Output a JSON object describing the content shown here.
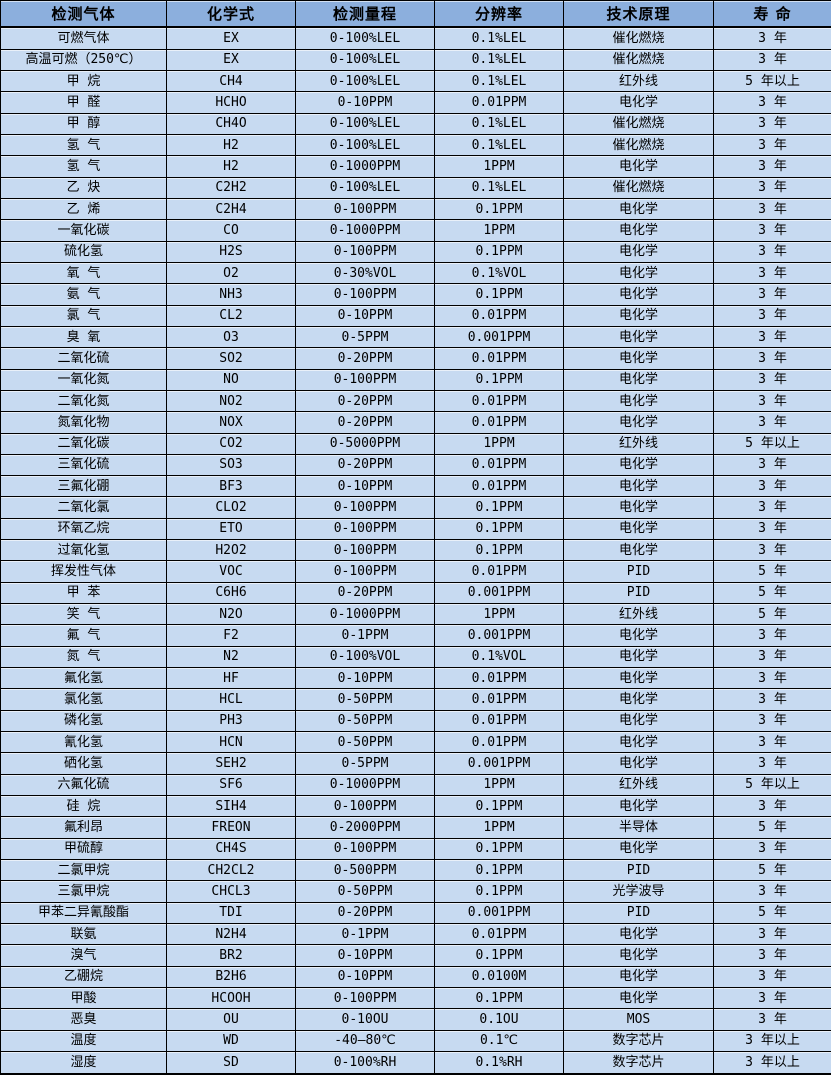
{
  "colors": {
    "header_bg": "#8cafdd",
    "row_bg": "#c7daf1",
    "border": "#000000"
  },
  "table": {
    "type": "table",
    "columns": [
      "检测气体",
      "化学式",
      "检测量程",
      "分辨率",
      "技术原理",
      "寿 命"
    ],
    "column_keys": [
      "gas-name",
      "chemical-formula",
      "detection-range",
      "resolution",
      "technology-principle",
      "lifespan"
    ],
    "rows": [
      [
        "可燃气体",
        "EX",
        "0-100%LEL",
        "0.1%LEL",
        "催化燃烧",
        "3 年"
      ],
      [
        "高温可燃（250℃）",
        "EX",
        "0-100%LEL",
        "0.1%LEL",
        "催化燃烧",
        "3 年"
      ],
      [
        "甲 烷",
        "CH4",
        "0-100%LEL",
        "0.1%LEL",
        "红外线",
        "5 年以上"
      ],
      [
        "甲 醛",
        "HCHO",
        "0-10PPM",
        "0.01PPM",
        "电化学",
        "3 年"
      ],
      [
        "甲 醇",
        "CH4O",
        "0-100%LEL",
        "0.1%LEL",
        "催化燃烧",
        "3 年"
      ],
      [
        "氢 气",
        "H2",
        "0-100%LEL",
        "0.1%LEL",
        "催化燃烧",
        "3 年"
      ],
      [
        "氢 气",
        "H2",
        "0-1000PPM",
        "1PPM",
        "电化学",
        "3 年"
      ],
      [
        "乙 炔",
        "C2H2",
        "0-100%LEL",
        "0.1%LEL",
        "催化燃烧",
        "3 年"
      ],
      [
        "乙 烯",
        "C2H4",
        "0-100PPM",
        "0.1PPM",
        "电化学",
        "3 年"
      ],
      [
        "一氧化碳",
        "CO",
        "0-1000PPM",
        "1PPM",
        "电化学",
        "3 年"
      ],
      [
        "硫化氢",
        "H2S",
        "0-100PPM",
        "0.1PPM",
        "电化学",
        "3 年"
      ],
      [
        "氧 气",
        "O2",
        "0-30%VOL",
        "0.1%VOL",
        "电化学",
        "3 年"
      ],
      [
        "氨 气",
        "NH3",
        "0-100PPM",
        "0.1PPM",
        "电化学",
        "3 年"
      ],
      [
        "氯 气",
        "CL2",
        "0-10PPM",
        "0.01PPM",
        "电化学",
        "3 年"
      ],
      [
        "臭 氧",
        "O3",
        "0-5PPM",
        "0.001PPM",
        "电化学",
        "3 年"
      ],
      [
        "二氧化硫",
        "SO2",
        "0-20PPM",
        "0.01PPM",
        "电化学",
        "3 年"
      ],
      [
        "一氧化氮",
        "NO",
        "0-100PPM",
        "0.1PPM",
        "电化学",
        "3 年"
      ],
      [
        "二氧化氮",
        "NO2",
        "0-20PPM",
        "0.01PPM",
        "电化学",
        "3 年"
      ],
      [
        "氮氧化物",
        "NOX",
        "0-20PPM",
        "0.01PPM",
        "电化学",
        "3 年"
      ],
      [
        "二氧化碳",
        "CO2",
        "0-5000PPM",
        "1PPM",
        "红外线",
        "5 年以上"
      ],
      [
        "三氧化硫",
        "SO3",
        "0-20PPM",
        "0.01PPM",
        "电化学",
        "3 年"
      ],
      [
        "三氟化硼",
        "BF3",
        "0-10PPM",
        "0.01PPM",
        "电化学",
        "3 年"
      ],
      [
        "二氧化氯",
        "CLO2",
        "0-100PPM",
        "0.1PPM",
        "电化学",
        "3 年"
      ],
      [
        "环氧乙烷",
        "ETO",
        "0-100PPM",
        "0.1PPM",
        "电化学",
        "3 年"
      ],
      [
        "过氧化氢",
        "H2O2",
        "0-100PPM",
        "0.1PPM",
        "电化学",
        "3 年"
      ],
      [
        "挥发性气体",
        "VOC",
        "0-100PPM",
        "0.01PPM",
        "PID",
        "5 年"
      ],
      [
        "甲 苯",
        "C6H6",
        "0-20PPM",
        "0.001PPM",
        "PID",
        "5 年"
      ],
      [
        "笑 气",
        "N2O",
        "0-1000PPM",
        "1PPM",
        "红外线",
        "5 年"
      ],
      [
        "氟 气",
        "F2",
        "0-1PPM",
        "0.001PPM",
        "电化学",
        "3 年"
      ],
      [
        "氮 气",
        "N2",
        "0-100%VOL",
        "0.1%VOL",
        "电化学",
        "3 年"
      ],
      [
        "氟化氢",
        "HF",
        "0-10PPM",
        "0.01PPM",
        "电化学",
        "3 年"
      ],
      [
        "氯化氢",
        "HCL",
        "0-50PPM",
        "0.01PPM",
        "电化学",
        "3 年"
      ],
      [
        "磷化氢",
        "PH3",
        "0-50PPM",
        "0.01PPM",
        "电化学",
        "3 年"
      ],
      [
        "氰化氢",
        "HCN",
        "0-50PPM",
        "0.01PPM",
        "电化学",
        "3 年"
      ],
      [
        "硒化氢",
        "SEH2",
        "0-5PPM",
        "0.001PPM",
        "电化学",
        "3 年"
      ],
      [
        "六氟化硫",
        "SF6",
        "0-1000PPM",
        "1PPM",
        "红外线",
        "5 年以上"
      ],
      [
        "硅 烷",
        "SIH4",
        "0-100PPM",
        "0.1PPM",
        "电化学",
        "3 年"
      ],
      [
        "氟利昂",
        "FREON",
        "0-2000PPM",
        "1PPM",
        "半导体",
        "5 年"
      ],
      [
        "甲硫醇",
        "CH4S",
        "0-100PPM",
        "0.1PPM",
        "电化学",
        "3 年"
      ],
      [
        "二氯甲烷",
        "CH2CL2",
        "0-500PPM",
        "0.1PPM",
        "PID",
        "5 年"
      ],
      [
        "三氯甲烷",
        "CHCL3",
        "0-50PPM",
        "0.1PPM",
        "光学波导",
        "3 年"
      ],
      [
        "甲苯二异氰酸酯",
        "TDI",
        "0-20PPM",
        "0.001PPM",
        "PID",
        "5 年"
      ],
      [
        "联氨",
        "N2H4",
        "0-1PPM",
        "0.01PPM",
        "电化学",
        "3 年"
      ],
      [
        "溴气",
        "BR2",
        "0-10PPM",
        "0.1PPM",
        "电化学",
        "3 年"
      ],
      [
        "乙硼烷",
        "B2H6",
        "0-10PPM",
        "0.0100M",
        "电化学",
        "3 年"
      ],
      [
        "甲酸",
        "HCOOH",
        "0-100PPM",
        "0.1PPM",
        "电化学",
        "3 年"
      ],
      [
        "恶臭",
        "OU",
        "0-10OU",
        "0.1OU",
        "MOS",
        "3 年"
      ],
      [
        "温度",
        "WD",
        "-40—80℃",
        "0.1℃",
        "数字芯片",
        "3 年以上"
      ],
      [
        "湿度",
        "SD",
        "0-100%RH",
        "0.1%RH",
        "数字芯片",
        "3 年以上"
      ]
    ]
  }
}
